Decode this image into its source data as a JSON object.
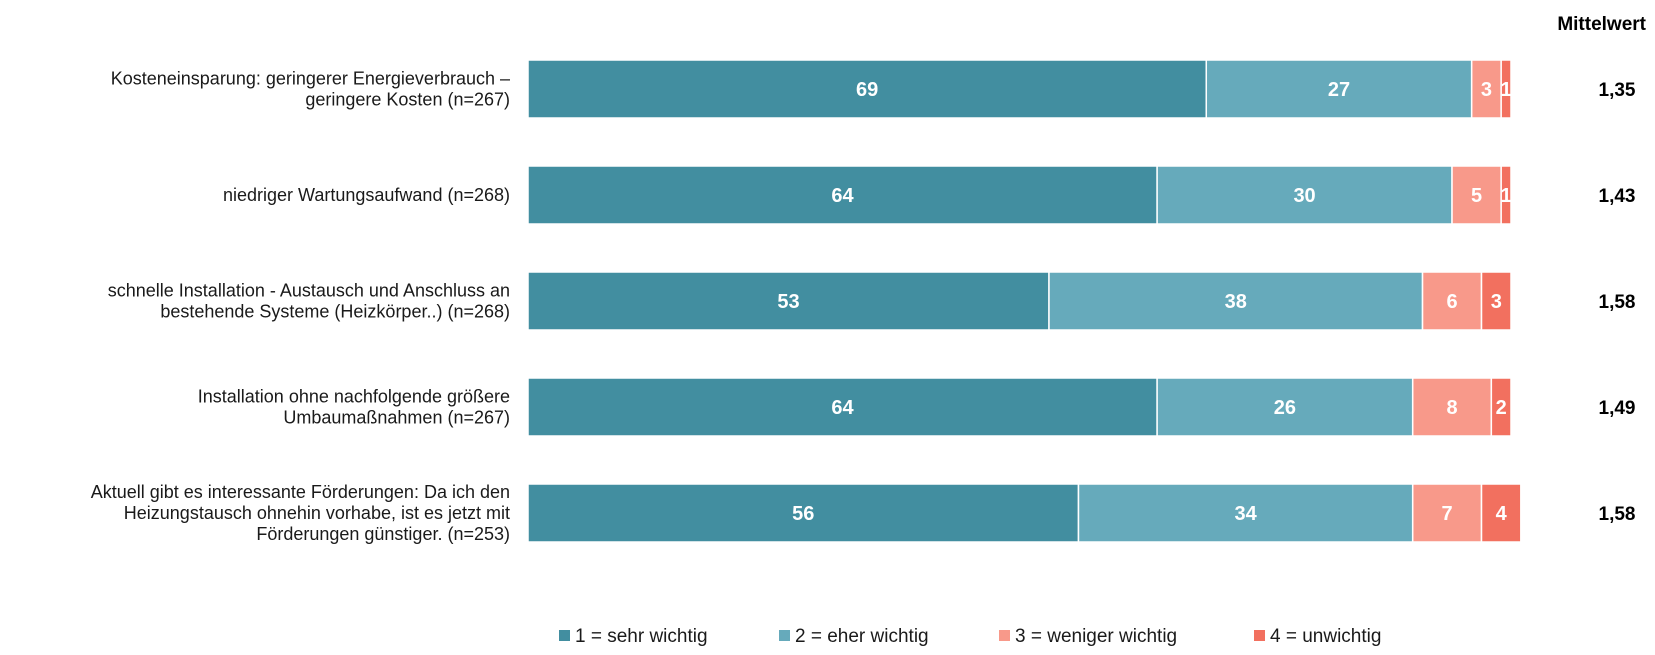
{
  "chart_data": {
    "type": "bar",
    "orientation": "horizontal-stacked-100",
    "mean_header": "Mittelwert",
    "categories": [
      [
        "Kosteneinsparung: geringerer Energieverbrauch –",
        "geringere Kosten (n=267)"
      ],
      [
        "niedriger Wartungsaufwand (n=268)"
      ],
      [
        "schnelle Installation - Austausch und Anschluss an",
        "bestehende Systeme (Heizkörper..) (n=268)"
      ],
      [
        "Installation ohne nachfolgende größere",
        "Umbaumaßnahmen (n=267)"
      ],
      [
        "Aktuell gibt es interessante Förderungen: Da ich den",
        "Heizungstausch ohnehin vorhabe, ist es jetzt mit",
        "Förderungen günstiger. (n=253)"
      ]
    ],
    "series": [
      {
        "name": "1 = sehr wichtig",
        "color": "#428EA0",
        "values": [
          69,
          64,
          53,
          64,
          56
        ],
        "labels": [
          "69",
          "64",
          "53",
          "64",
          "56"
        ]
      },
      {
        "name": "2 = eher wichtig",
        "color": "#66AABB",
        "values": [
          27,
          30,
          38,
          26,
          34
        ],
        "labels": [
          "27",
          "30",
          "38",
          "26",
          "34"
        ]
      },
      {
        "name": "3 = weniger wichtig",
        "color": "#F8998A",
        "values": [
          3,
          5,
          6,
          8,
          7
        ],
        "labels": [
          "3",
          "5",
          "6",
          "8",
          "7"
        ]
      },
      {
        "name": "4 = unwichtig",
        "color": "#F2705F",
        "values": [
          1,
          1,
          3,
          2,
          4
        ],
        "labels": [
          "1",
          "1",
          "3",
          "2",
          "4"
        ]
      }
    ],
    "means": [
      "1,35",
      "1,43",
      "1,58",
      "1,49",
      "1,58"
    ],
    "xlim": [
      0,
      100
    ],
    "grid": false,
    "legend_position": "bottom"
  }
}
